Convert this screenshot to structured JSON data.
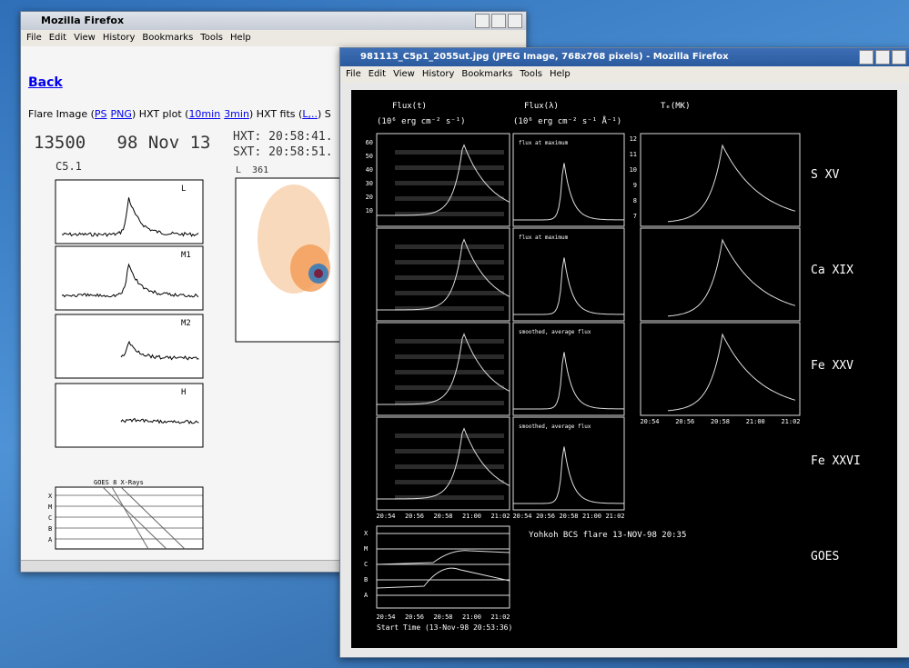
{
  "windows": [
    {
      "title": "Mozilla Firefox",
      "menu": [
        "File",
        "Edit",
        "View",
        "History",
        "Bookmarks",
        "Tools",
        "Help"
      ],
      "back_link": "Back",
      "links_line": [
        {
          "text": "Flare Image ("
        },
        {
          "text": "PS",
          "link": true
        },
        {
          "text": "PNG",
          "link": true
        },
        {
          "text": ") HXT plot ("
        },
        {
          "text": "10min",
          "link": true
        },
        {
          "text": "3min",
          "link": true
        },
        {
          "text": ") HXT fits ("
        },
        {
          "text": "L,..",
          "link": true
        },
        {
          "text": ") S"
        }
      ],
      "flare_header": "13500   98 Nov 13",
      "goes_class": "C5.1",
      "hxt_time": "HXT: 20:58:41.",
      "sxt_time": "SXT: 20:58:51.",
      "image_label": "L  361",
      "panel_labels": [
        "L",
        "M1",
        "M2",
        "H"
      ],
      "goes_title": "GOES 8 X-Rays",
      "goes_letters": [
        "X",
        "M",
        "C",
        "B",
        "A"
      ]
    },
    {
      "title": "981113_C5p1_2055ut.jpg (JPEG Image, 768x768 pixels) - Mozilla Firefox",
      "menu": [
        "File",
        "Edit",
        "View",
        "History",
        "Bookmarks",
        "Tools",
        "Help"
      ],
      "column_titles": [
        "Flux(t)",
        "Flux(λ)",
        "Tₑ(MK)"
      ],
      "column_units": [
        "(10⁶ erg cm⁻² s⁻¹)",
        "(10⁶ erg cm⁻² s⁻¹ Å⁻¹)"
      ],
      "row_labels": [
        "S XV",
        "Ca XIX",
        "Fe XXV",
        "Fe XXVI",
        "GOES"
      ],
      "panel_notes": [
        "flux at maximum",
        "flux at maximum",
        "smoothed, average flux",
        "smoothed, average flux"
      ],
      "time_ticks": [
        "20:54",
        "20:56",
        "20:58",
        "21:00",
        "21:02"
      ],
      "flux_yticks": [
        60,
        50,
        40,
        30,
        20,
        10
      ],
      "temp_yticks": [
        12,
        11,
        10,
        9,
        8,
        7
      ],
      "goes_letters": [
        "X",
        "M",
        "C",
        "B",
        "A"
      ],
      "caption": "Yohkoh BCS flare 13-NOV-98  20:35",
      "start_time": "Start Time (13-Nov-98 20:53:36)"
    }
  ]
}
